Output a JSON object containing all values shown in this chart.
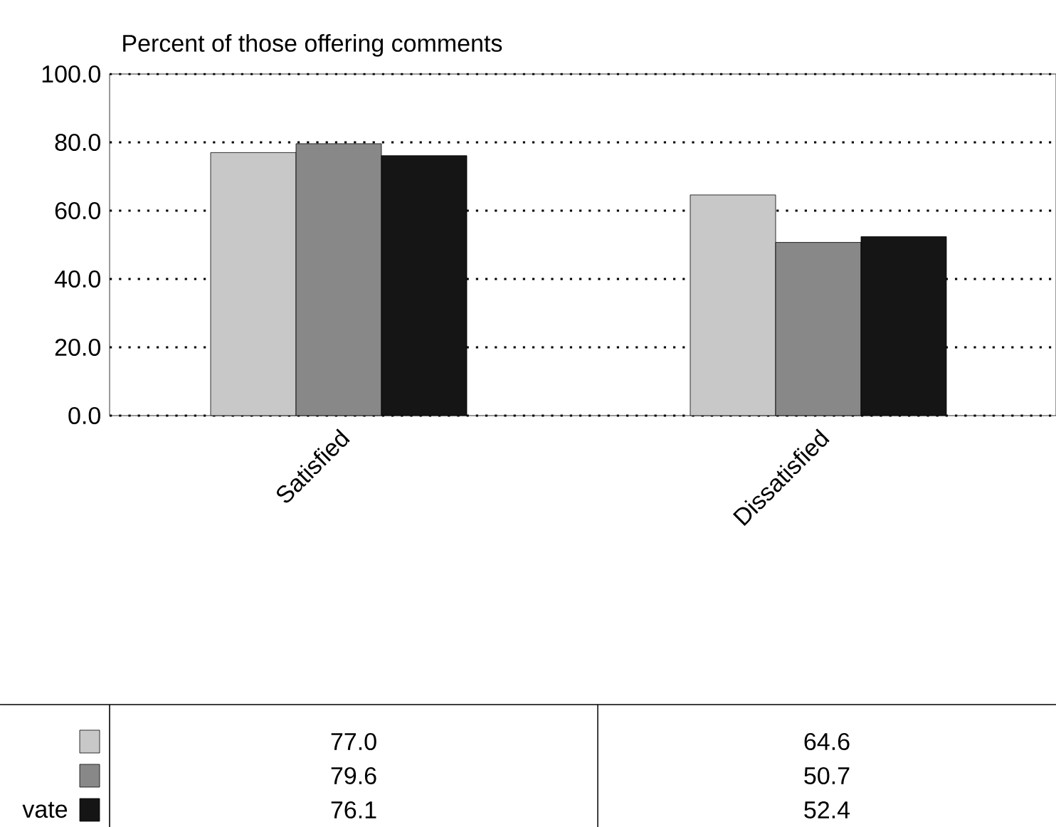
{
  "chart_data": {
    "type": "bar",
    "title": "Percent of those offering comments",
    "categories": [
      "Satisfied",
      "Dissatisfied"
    ],
    "series": [
      {
        "color": "#c8c8c8",
        "values": [
          77.0,
          64.6
        ],
        "value_labels": [
          "77.0",
          "64.6"
        ]
      },
      {
        "color": "#888888",
        "values": [
          79.6,
          50.7
        ],
        "value_labels": [
          "79.6",
          "50.7"
        ]
      },
      {
        "name": "vate",
        "color": "#151515",
        "values": [
          76.1,
          52.4
        ],
        "value_labels": [
          "76.1",
          "52.4"
        ]
      }
    ],
    "ylim": [
      0,
      100
    ],
    "yticks": [
      {
        "value": 0,
        "label": "0.0"
      },
      {
        "value": 20,
        "label": "20.0"
      },
      {
        "value": 40,
        "label": "40.0"
      },
      {
        "value": 60,
        "label": "60.0"
      },
      {
        "value": 80,
        "label": "80.0"
      },
      {
        "value": 100,
        "label": "100.0"
      }
    ],
    "grid": "y",
    "legend": "bottom"
  }
}
